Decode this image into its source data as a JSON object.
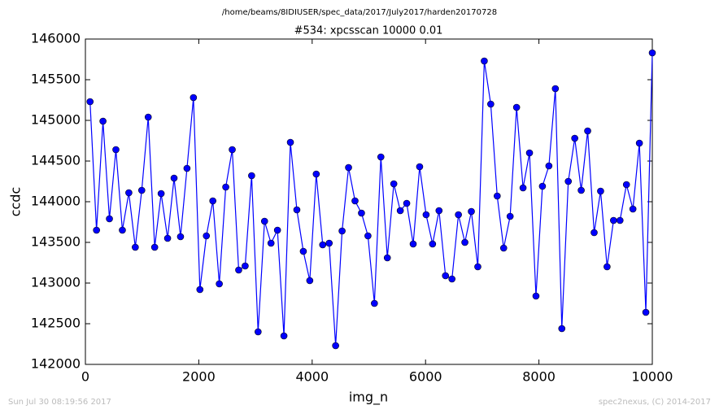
{
  "chart_data": {
    "type": "line",
    "suptitle": "/home/beams/8IDIUSER/spec_data/2017/July2017/harden20170728",
    "title": "#534: xpcsscan 10000 0.01",
    "x_label": "img_n",
    "y_label": "ccdc",
    "annotations": [
      "Sun Jul 30 08:19:56 2017",
      "spec2nexus, (C) 2014-2017"
    ],
    "x": [
      82,
      196,
      310,
      424,
      538,
      652,
      766,
      880,
      994,
      1108,
      1222,
      1336,
      1450,
      1564,
      1678,
      1792,
      1906,
      2020,
      2134,
      2248,
      2362,
      2476,
      2590,
      2704,
      2818,
      2932,
      3046,
      3160,
      3274,
      3388,
      3502,
      3616,
      3730,
      3844,
      3958,
      4072,
      4186,
      4300,
      4414,
      4528,
      4642,
      4756,
      4870,
      4984,
      5098,
      5212,
      5326,
      5440,
      5554,
      5668,
      5782,
      5896,
      6010,
      6124,
      6238,
      6352,
      6466,
      6580,
      6694,
      6808,
      6922,
      7036,
      7150,
      7264,
      7378,
      7492,
      7606,
      7720,
      7834,
      7948,
      8062,
      8176,
      8290,
      8404,
      8518,
      8632,
      8746,
      8860,
      8974,
      9088,
      9202,
      9316,
      9430,
      9544,
      9658,
      9772,
      9886,
      10000
    ],
    "series": [
      {
        "color": "#0000ff",
        "values": [
          145230,
          143650,
          144990,
          143790,
          144640,
          143650,
          144110,
          143440,
          144140,
          145040,
          143440,
          144100,
          143550,
          144290,
          143570,
          144410,
          145280,
          142920,
          143580,
          144010,
          142990,
          144180,
          144640,
          143160,
          143210,
          144320,
          142400,
          143760,
          143490,
          143650,
          142350,
          144730,
          143900,
          143390,
          143030,
          144340,
          143470,
          143490,
          142230,
          143640,
          144420,
          144010,
          143860,
          143580,
          142750,
          144550,
          143310,
          144220,
          143890,
          143980,
          143480,
          144430,
          143840,
          143480,
          143890,
          143090,
          143050,
          143840,
          143500,
          143880,
          143200,
          145730,
          145200,
          144070,
          143430,
          143820,
          145160,
          144170,
          144600,
          142840,
          144190,
          144440,
          145390,
          142440,
          144250,
          144780,
          144140,
          144870,
          143620,
          144130,
          143200,
          143770,
          143770,
          144210,
          143910,
          144720,
          142640,
          145830
        ]
      }
    ],
    "xlim": [
      0,
      10000
    ],
    "xticks": [
      0,
      2000,
      4000,
      6000,
      8000,
      10000
    ],
    "ylim": [
      142000,
      146000
    ],
    "yticks": [
      142000,
      142500,
      143000,
      143500,
      144000,
      144500,
      145000,
      145500,
      146000
    ],
    "grid": false
  }
}
